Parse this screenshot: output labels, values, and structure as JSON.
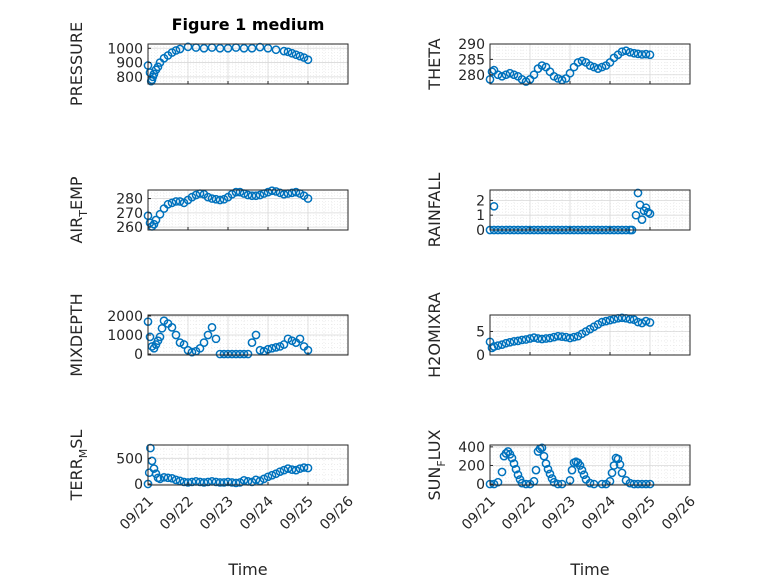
{
  "figure": {
    "title": "Figure 1 medium",
    "xlabel": "Time"
  },
  "colors": {
    "marker": "#0072BD",
    "axis": "#262626",
    "grid": "#d9d9d9",
    "minor_grid": "#e6e6e6"
  },
  "chart_data": [
    {
      "id": "pressure",
      "type": "scatter",
      "ylabel": "PRESSURE",
      "ylim": [
        750,
        1030
      ],
      "yticks": [
        800,
        900,
        1000
      ],
      "xlim": [
        0,
        5
      ],
      "grid": true,
      "xticklabels": [
        "09/21",
        "09/22",
        "09/23",
        "09/24",
        "09/25",
        "09/26"
      ],
      "x": [
        0.0,
        0.05,
        0.08,
        0.1,
        0.12,
        0.15,
        0.2,
        0.25,
        0.3,
        0.4,
        0.5,
        0.6,
        0.7,
        0.8,
        1.0,
        1.2,
        1.4,
        1.6,
        1.8,
        2.0,
        2.2,
        2.4,
        2.6,
        2.8,
        3.0,
        3.2,
        3.4,
        3.5,
        3.6,
        3.7,
        3.8,
        3.9,
        4.0
      ],
      "y": [
        880,
        830,
        770,
        780,
        800,
        820,
        850,
        870,
        900,
        930,
        950,
        970,
        985,
        995,
        1010,
        1005,
        1000,
        1005,
        1000,
        1000,
        1005,
        1000,
        1000,
        1008,
        1000,
        990,
        980,
        975,
        965,
        955,
        945,
        935,
        920
      ]
    },
    {
      "id": "theta",
      "type": "scatter",
      "ylabel": "THETA",
      "ylim": [
        277,
        290
      ],
      "yticks": [
        280,
        285,
        290
      ],
      "xlim": [
        0,
        5
      ],
      "grid": true,
      "xticklabels": [
        "09/21",
        "09/22",
        "09/23",
        "09/24",
        "09/25",
        "09/26"
      ],
      "x": [
        0.0,
        0.05,
        0.1,
        0.2,
        0.3,
        0.4,
        0.5,
        0.6,
        0.7,
        0.8,
        0.9,
        1.0,
        1.1,
        1.2,
        1.3,
        1.4,
        1.5,
        1.6,
        1.7,
        1.8,
        1.9,
        2.0,
        2.1,
        2.2,
        2.3,
        2.4,
        2.5,
        2.6,
        2.7,
        2.8,
        2.9,
        3.0,
        3.1,
        3.2,
        3.3,
        3.4,
        3.5,
        3.6,
        3.7,
        3.8,
        3.9,
        4.0
      ],
      "y": [
        278.5,
        281,
        281.5,
        280,
        279.5,
        280,
        280.5,
        280,
        279.5,
        278.5,
        277.8,
        278.5,
        280,
        282,
        283,
        282.5,
        281,
        279.5,
        278.8,
        278.3,
        278.8,
        280.5,
        282.5,
        284,
        284.5,
        284,
        283,
        282.5,
        282,
        282.5,
        283,
        284,
        285.5,
        286.5,
        287.5,
        287.8,
        287.3,
        287,
        286.8,
        286.6,
        286.7,
        286.5
      ]
    },
    {
      "id": "air_temp",
      "type": "scatter",
      "ylabel": "AIR_TEMP",
      "ylim": [
        258,
        286
      ],
      "yticks": [
        260,
        270,
        280
      ],
      "xlim": [
        0,
        5
      ],
      "grid": true,
      "xticklabels": [
        "09/21",
        "09/22",
        "09/23",
        "09/24",
        "09/25",
        "09/26"
      ],
      "x": [
        0.0,
        0.05,
        0.1,
        0.15,
        0.2,
        0.3,
        0.4,
        0.5,
        0.6,
        0.7,
        0.8,
        0.9,
        1.0,
        1.1,
        1.2,
        1.3,
        1.4,
        1.5,
        1.6,
        1.7,
        1.8,
        1.9,
        2.0,
        2.1,
        2.2,
        2.3,
        2.4,
        2.5,
        2.6,
        2.7,
        2.8,
        2.9,
        3.0,
        3.1,
        3.2,
        3.3,
        3.4,
        3.5,
        3.6,
        3.7,
        3.8,
        3.9,
        4.0
      ],
      "y": [
        268,
        263,
        260.5,
        262,
        265,
        269,
        273,
        276,
        277,
        278,
        278,
        277,
        279,
        281,
        282.5,
        283.5,
        283,
        281,
        280,
        279.5,
        279,
        279.5,
        281,
        283,
        284.5,
        284.5,
        283.5,
        282.5,
        282,
        282,
        282.5,
        283.5,
        284.5,
        285.5,
        285,
        284,
        283,
        283.5,
        284,
        284.5,
        283.5,
        282,
        280
      ]
    },
    {
      "id": "rainfall",
      "type": "scatter",
      "ylabel": "RAINFALL",
      "ylim": [
        0,
        2.7
      ],
      "yticks": [
        0,
        1,
        2
      ],
      "xlim": [
        0,
        5
      ],
      "grid": true,
      "xticklabels": [
        "09/21",
        "09/22",
        "09/23",
        "09/24",
        "09/25",
        "09/26"
      ],
      "x": [
        0.0,
        0.1,
        0.2,
        0.3,
        0.4,
        0.5,
        0.6,
        0.7,
        0.8,
        0.9,
        1.0,
        1.1,
        1.2,
        1.3,
        1.4,
        1.5,
        1.6,
        1.7,
        1.8,
        1.9,
        2.0,
        2.1,
        2.2,
        2.3,
        2.4,
        2.5,
        2.6,
        2.7,
        2.8,
        2.9,
        3.0,
        3.1,
        3.2,
        3.3,
        3.4,
        3.5,
        0.1,
        3.55,
        3.65,
        3.7,
        3.75,
        3.8,
        3.85,
        3.9,
        3.95,
        4.0
      ],
      "y": [
        0,
        0,
        0,
        0,
        0,
        0,
        0,
        0,
        0,
        0,
        0,
        0,
        0,
        0,
        0,
        0,
        0,
        0,
        0,
        0,
        0,
        0,
        0,
        0,
        0,
        0,
        0,
        0,
        0,
        0,
        0,
        0,
        0,
        0,
        0,
        0,
        1.6,
        0,
        1.0,
        2.5,
        1.7,
        0.7,
        1.3,
        1.5,
        1.2,
        1.1
      ]
    },
    {
      "id": "mixdepth",
      "type": "scatter",
      "ylabel": "MIXDEPTH",
      "ylim": [
        -50,
        2050
      ],
      "yticks": [
        0,
        1000,
        2000
      ],
      "xlim": [
        0,
        5
      ],
      "grid": true,
      "xticklabels": [
        "09/21",
        "09/22",
        "09/23",
        "09/24",
        "09/25",
        "09/26"
      ],
      "x": [
        0.0,
        0.05,
        0.1,
        0.15,
        0.2,
        0.25,
        0.3,
        0.35,
        0.4,
        0.5,
        0.6,
        0.7,
        0.8,
        0.9,
        1.0,
        1.1,
        1.2,
        1.3,
        1.4,
        1.5,
        1.6,
        1.7,
        1.8,
        1.9,
        2.0,
        2.1,
        2.2,
        2.3,
        2.4,
        2.5,
        2.6,
        2.7,
        2.8,
        2.9,
        3.0,
        3.1,
        3.2,
        3.3,
        3.4,
        3.5,
        3.6,
        3.7,
        3.8,
        3.9,
        4.0
      ],
      "y": [
        1700,
        900,
        400,
        300,
        500,
        700,
        900,
        1350,
        1750,
        1600,
        1400,
        1000,
        600,
        500,
        200,
        100,
        150,
        300,
        600,
        1000,
        1400,
        800,
        0,
        0,
        0,
        0,
        0,
        0,
        0,
        0,
        600,
        1000,
        200,
        150,
        250,
        300,
        350,
        400,
        500,
        800,
        700,
        600,
        800,
        400,
        200
      ]
    },
    {
      "id": "h2omixra",
      "type": "scatter",
      "ylabel": "H2OMIXRA",
      "ylim": [
        0,
        8.5
      ],
      "yticks": [
        0,
        5
      ],
      "xlim": [
        0,
        5
      ],
      "grid": true,
      "xticklabels": [
        "09/21",
        "09/22",
        "09/23",
        "09/24",
        "09/25",
        "09/26"
      ],
      "x": [
        0.0,
        0.05,
        0.1,
        0.2,
        0.3,
        0.4,
        0.5,
        0.6,
        0.7,
        0.8,
        0.9,
        1.0,
        1.1,
        1.2,
        1.3,
        1.4,
        1.5,
        1.6,
        1.7,
        1.8,
        1.9,
        2.0,
        2.1,
        2.2,
        2.3,
        2.4,
        2.5,
        2.6,
        2.7,
        2.8,
        2.9,
        3.0,
        3.1,
        3.2,
        3.3,
        3.4,
        3.5,
        3.6,
        3.7,
        3.8,
        3.9,
        4.0
      ],
      "y": [
        2.8,
        1.5,
        1.8,
        2.0,
        2.2,
        2.5,
        2.7,
        2.9,
        3.0,
        3.2,
        3.3,
        3.5,
        3.7,
        3.5,
        3.4,
        3.5,
        3.6,
        3.8,
        4.0,
        3.9,
        3.8,
        3.6,
        3.8,
        4.0,
        4.5,
        5.0,
        5.5,
        6.0,
        6.5,
        7.0,
        7.2,
        7.4,
        7.6,
        7.8,
        7.9,
        7.8,
        7.6,
        7.5,
        7.0,
        6.8,
        7.2,
        6.9
      ]
    },
    {
      "id": "terr_msl",
      "type": "scatter",
      "ylabel": "TERR_MSL",
      "ylim": [
        -20,
        760
      ],
      "yticks": [
        0,
        500
      ],
      "xlim": [
        0,
        5
      ],
      "grid": true,
      "xticklabels": [
        "09/21",
        "09/22",
        "09/23",
        "09/24",
        "09/25",
        "09/26"
      ],
      "x": [
        0.0,
        0.03,
        0.06,
        0.1,
        0.15,
        0.2,
        0.25,
        0.3,
        0.4,
        0.5,
        0.6,
        0.7,
        0.8,
        0.9,
        1.0,
        1.1,
        1.2,
        1.3,
        1.4,
        1.5,
        1.6,
        1.7,
        1.8,
        1.9,
        2.0,
        2.1,
        2.2,
        2.3,
        2.4,
        2.5,
        2.6,
        2.7,
        2.8,
        2.9,
        3.0,
        3.1,
        3.2,
        3.3,
        3.4,
        3.5,
        3.6,
        3.7,
        3.8,
        3.9,
        4.0
      ],
      "y": [
        0,
        220,
        700,
        450,
        300,
        200,
        120,
        100,
        130,
        120,
        110,
        80,
        60,
        40,
        30,
        40,
        50,
        40,
        30,
        40,
        50,
        40,
        30,
        30,
        40,
        30,
        20,
        30,
        70,
        50,
        40,
        80,
        60,
        100,
        140,
        170,
        200,
        240,
        270,
        300,
        280,
        270,
        300,
        320,
        310
      ]
    },
    {
      "id": "sun_flux",
      "type": "scatter",
      "ylabel": "SUN_FLUX",
      "ylim": [
        -10,
        420
      ],
      "yticks": [
        0,
        200,
        400
      ],
      "xlim": [
        0,
        5
      ],
      "grid": true,
      "xticklabels": [
        "09/21",
        "09/22",
        "09/23",
        "09/24",
        "09/25",
        "09/26"
      ],
      "x": [
        0.0,
        0.1,
        0.2,
        0.3,
        0.35,
        0.4,
        0.45,
        0.5,
        0.55,
        0.6,
        0.65,
        0.7,
        0.75,
        0.8,
        0.9,
        1.0,
        1.1,
        1.15,
        1.2,
        1.25,
        1.3,
        1.35,
        1.4,
        1.45,
        1.5,
        1.55,
        1.6,
        1.7,
        1.8,
        2.0,
        2.05,
        2.1,
        2.15,
        2.2,
        2.25,
        2.3,
        2.35,
        2.4,
        2.5,
        2.6,
        2.8,
        2.9,
        3.0,
        3.05,
        3.1,
        3.15,
        3.2,
        3.25,
        3.3,
        3.4,
        3.5,
        3.6,
        3.7,
        3.8,
        3.9,
        4.0
      ],
      "y": [
        0,
        0,
        20,
        130,
        300,
        330,
        350,
        320,
        280,
        220,
        160,
        100,
        50,
        10,
        0,
        0,
        30,
        150,
        350,
        380,
        390,
        300,
        220,
        160,
        110,
        60,
        20,
        0,
        0,
        40,
        150,
        230,
        240,
        230,
        200,
        150,
        100,
        50,
        10,
        0,
        0,
        0,
        30,
        120,
        200,
        280,
        270,
        210,
        120,
        40,
        10,
        0,
        0,
        0,
        0,
        0
      ]
    }
  ]
}
